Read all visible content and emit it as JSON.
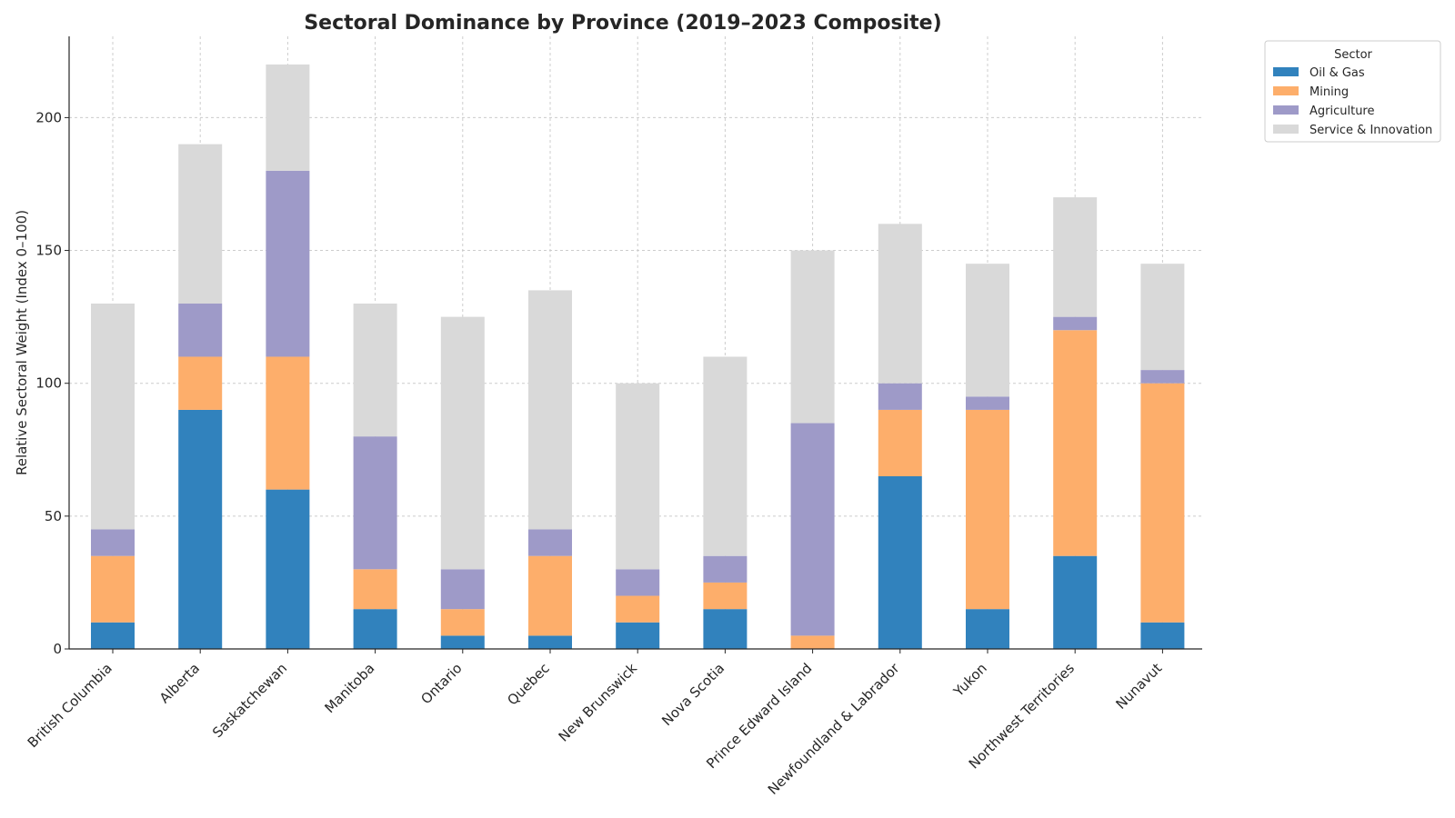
{
  "chart_data": {
    "type": "bar",
    "stacked": true,
    "title": "Sectoral Dominance by Province (2019–2023 Composite)",
    "xlabel": "",
    "ylabel": "Relative Sectoral Weight (Index 0–100)",
    "ylim": [
      0,
      231
    ],
    "yticks": [
      0,
      50,
      100,
      150,
      200
    ],
    "grid": true,
    "legend": {
      "title": "Sector",
      "position": "outside-top-right"
    },
    "categories": [
      "British Columbia",
      "Alberta",
      "Saskatchewan",
      "Manitoba",
      "Ontario",
      "Quebec",
      "New Brunswick",
      "Nova Scotia",
      "Prince Edward Island",
      "Newfoundland & Labrador",
      "Yukon",
      "Northwest Territories",
      "Nunavut"
    ],
    "series": [
      {
        "name": "Oil & Gas",
        "color": "#3182bd",
        "values": [
          10,
          90,
          60,
          15,
          5,
          5,
          10,
          15,
          0,
          65,
          15,
          35,
          10
        ]
      },
      {
        "name": "Mining",
        "color": "#fdae6b",
        "values": [
          25,
          20,
          50,
          15,
          10,
          30,
          10,
          10,
          5,
          25,
          75,
          85,
          90
        ]
      },
      {
        "name": "Agriculture",
        "color": "#9e9ac8",
        "values": [
          10,
          20,
          70,
          50,
          15,
          10,
          10,
          10,
          80,
          10,
          5,
          5,
          5
        ]
      },
      {
        "name": "Service & Innovation",
        "color": "#d9d9d9",
        "values": [
          85,
          60,
          40,
          50,
          95,
          90,
          70,
          75,
          65,
          60,
          50,
          45,
          40
        ]
      }
    ]
  }
}
